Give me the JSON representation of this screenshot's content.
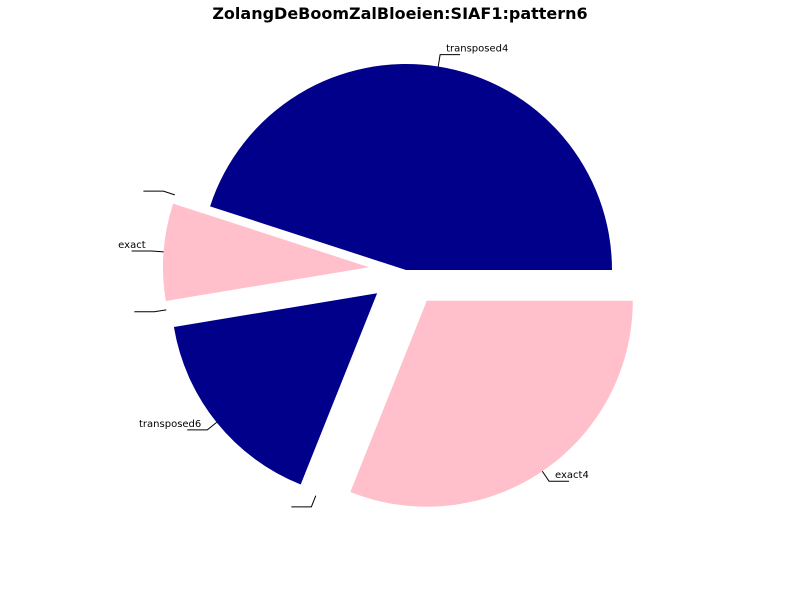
{
  "chart_data": {
    "type": "pie",
    "title": "ZolangDeBoomZalBloeien:SIAF1:pattern6",
    "slices": [
      {
        "label": "transposed4",
        "value": 0.45,
        "color": "#00008B",
        "explode": 0.0
      },
      {
        "label": "",
        "value": 0.0,
        "color": "#FFC0CB",
        "explode": 0.18
      },
      {
        "label": "exact",
        "value": 0.0762,
        "color": "#FFC0CB",
        "explode": 0.18
      },
      {
        "label": "",
        "value": 0.0,
        "color": "#00008B",
        "explode": 0.18
      },
      {
        "label": "transposed6",
        "value": 0.1633,
        "color": "#00008B",
        "explode": 0.18
      },
      {
        "label": "",
        "value": 0.0,
        "color": "#FFC0CB",
        "explode": 0.18
      },
      {
        "label": "exact4",
        "value": 0.3105,
        "color": "#FFC0CB",
        "explode": 0.18
      }
    ],
    "start_angle": 0,
    "direction": "counterclockwise",
    "legend": "none"
  }
}
